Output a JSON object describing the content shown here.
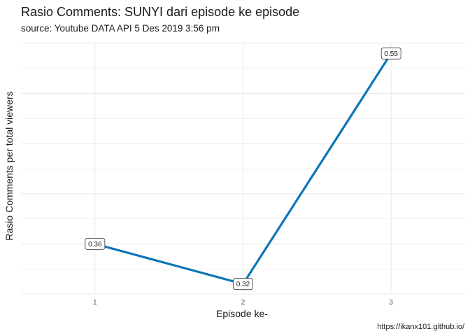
{
  "chart_data": {
    "type": "line",
    "title": "Rasio Comments: SUNYI dari episode ke episode",
    "subtitle": "source: Youtube DATA API 5 Des 2019 3:56 pm",
    "xlabel": "Episode ke-",
    "ylabel": "Rasio Comments per total viewers",
    "caption": "https://ikanx101.github.io/",
    "x": [
      1,
      2,
      3
    ],
    "series": [
      {
        "values": [
          0.36,
          0.32,
          0.55
        ],
        "color": "#0e76b8"
      }
    ],
    "data_labels": [
      "0.36",
      "0.32",
      "0.55"
    ],
    "xlim": [
      0.5,
      3.5
    ],
    "ylim": [
      0.31,
      0.56
    ],
    "x_tick_labels": [
      "1",
      "2",
      "3"
    ],
    "y_tick_labels": [],
    "grid": true,
    "legend": "none"
  }
}
